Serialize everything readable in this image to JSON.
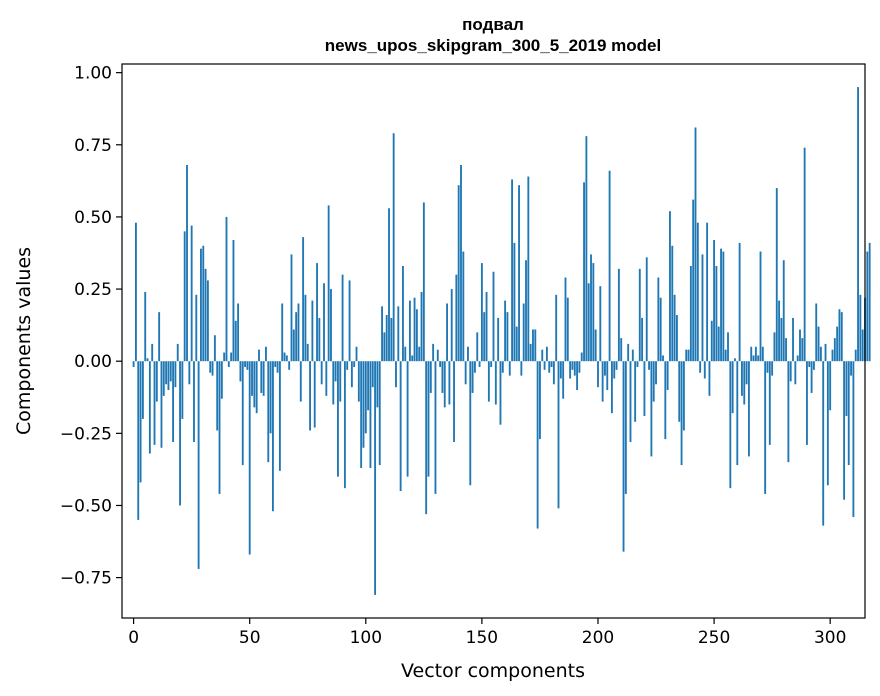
{
  "chart_data": {
    "type": "bar",
    "title_line1": "подвал",
    "title_line2": "news_upos_skipgram_300_5_2019 model",
    "xlabel": "Vector components",
    "ylabel": "Components values",
    "xlim": [
      -5,
      315
    ],
    "ylim": [
      -0.89,
      1.03
    ],
    "xticks": [
      0,
      50,
      100,
      150,
      200,
      250,
      300
    ],
    "xtick_labels": [
      "0",
      "50",
      "100",
      "150",
      "200",
      "250",
      "300"
    ],
    "yticks": [
      -0.75,
      -0.5,
      -0.25,
      0.0,
      0.25,
      0.5,
      0.75,
      1.0
    ],
    "ytick_labels": [
      "−0.75",
      "−0.50",
      "−0.25",
      "0.00",
      "0.25",
      "0.50",
      "0.75",
      "1.00"
    ],
    "bar_color": "#1f77b4",
    "values": [
      -0.02,
      0.48,
      -0.55,
      -0.42,
      -0.2,
      0.24,
      0.01,
      -0.32,
      0.06,
      -0.29,
      -0.14,
      0.17,
      -0.3,
      -0.12,
      -0.08,
      -0.1,
      -0.07,
      -0.28,
      -0.09,
      0.06,
      -0.5,
      -0.2,
      0.45,
      0.68,
      -0.08,
      0.47,
      -0.28,
      0.23,
      -0.72,
      0.39,
      0.4,
      0.32,
      0.28,
      -0.04,
      -0.05,
      0.09,
      -0.24,
      -0.46,
      -0.13,
      0.03,
      0.5,
      -0.02,
      0.03,
      0.42,
      0.14,
      0.2,
      -0.07,
      -0.36,
      -0.02,
      -0.03,
      -0.67,
      -0.12,
      -0.16,
      -0.18,
      0.04,
      -0.11,
      -0.12,
      0.05,
      -0.35,
      -0.25,
      -0.52,
      -0.02,
      -0.04,
      -0.38,
      0.2,
      0.03,
      0.02,
      -0.03,
      0.37,
      0.11,
      0.17,
      0.2,
      -0.14,
      0.43,
      0.23,
      0.06,
      -0.24,
      0.21,
      -0.23,
      0.34,
      0.15,
      -0.08,
      0.27,
      -0.12,
      0.54,
      0.25,
      -0.15,
      -0.07,
      -0.4,
      -0.14,
      0.3,
      -0.44,
      -0.03,
      0.28,
      -0.09,
      -0.02,
      0.05,
      -0.14,
      -0.37,
      -0.3,
      -0.25,
      -0.17,
      -0.37,
      -0.09,
      -0.81,
      -0.16,
      -0.36,
      0.19,
      0.1,
      0.16,
      0.53,
      0.15,
      0.79,
      -0.09,
      0.19,
      -0.45,
      0.33,
      0.05,
      -0.4,
      0.21,
      0.02,
      0.22,
      0.18,
      0.05,
      0.24,
      0.55,
      -0.53,
      -0.4,
      -0.11,
      0.06,
      -0.46,
      0.04,
      -0.02,
      -0.11,
      -0.16,
      0.2,
      -0.15,
      0.25,
      -0.28,
      0.3,
      0.61,
      0.68,
      0.38,
      -0.08,
      0.05,
      -0.43,
      -0.11,
      -0.04,
      0.1,
      -0.02,
      0.34,
      0.17,
      0.24,
      -0.14,
      -0.02,
      0.31,
      -0.15,
      0.15,
      -0.22,
      -0.04,
      0.21,
      0.17,
      -0.05,
      0.63,
      0.41,
      0.12,
      0.61,
      -0.05,
      0.2,
      0.35,
      0.64,
      0.06,
      0.11,
      0.11,
      -0.58,
      -0.27,
      0.04,
      -0.03,
      0.05,
      -0.04,
      -0.02,
      -0.08,
      0.23,
      -0.51,
      -0.06,
      -0.13,
      0.29,
      0.22,
      -0.06,
      -0.03,
      -0.05,
      -0.1,
      -0.04,
      0.03,
      0.62,
      0.78,
      0.27,
      0.37,
      0.34,
      0.11,
      -0.09,
      0.26,
      -0.14,
      -0.05,
      -0.1,
      0.66,
      -0.18,
      -0.06,
      -0.03,
      0.32,
      0.08,
      -0.66,
      -0.46,
      0.06,
      -0.28,
      0.04,
      -0.21,
      -0.02,
      0.32,
      0.15,
      -0.19,
      0.36,
      -0.03,
      -0.33,
      -0.14,
      -0.08,
      0.29,
      0.22,
      0.02,
      -0.27,
      -0.1,
      0.52,
      0.4,
      0.23,
      0.16,
      -0.21,
      -0.36,
      -0.24,
      0.04,
      0.04,
      0.33,
      0.56,
      0.81,
      0.48,
      -0.04,
      0.37,
      -0.06,
      0.48,
      -0.12,
      0.14,
      0.42,
      0.33,
      0.12,
      0.39,
      0.38,
      0.04,
      0.1,
      -0.44,
      -0.18,
      0.01,
      -0.36,
      0.41,
      -0.12,
      -0.15,
      -0.08,
      -0.33,
      0.05,
      0.02,
      0.05,
      0.02,
      0.38,
      0.05,
      -0.46,
      -0.04,
      -0.29,
      -0.05,
      0.1,
      0.6,
      0.21,
      0.15,
      0.35,
      0.08,
      -0.35,
      -0.07,
      0.15,
      -0.08,
      0.02,
      0.11,
      0.08,
      0.74,
      -0.29,
      -0.02,
      -0.11,
      -0.03,
      0.2,
      0.12,
      0.05,
      -0.57,
      0.06,
      -0.43,
      -0.17,
      0.04,
      0.08,
      0.12,
      0.18,
      0.17,
      -0.48,
      -0.19,
      -0.36,
      -0.05,
      -0.54,
      0.04,
      0.95,
      0.23,
      0.11,
      0.22,
      0.38,
      0.41
    ]
  }
}
